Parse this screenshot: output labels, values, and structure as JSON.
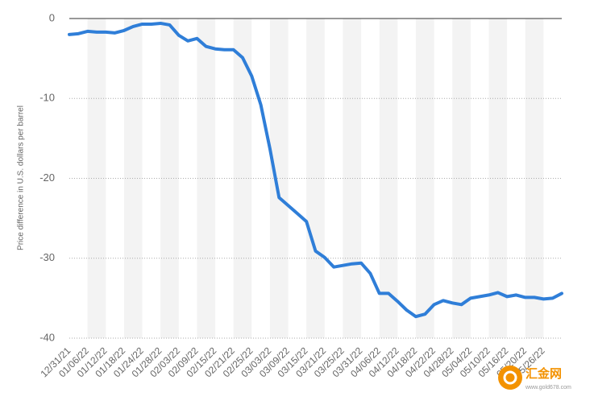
{
  "chart_data": {
    "type": "line",
    "y_axis_title": "Price difference in U.S. dollars per barrel",
    "categories": [
      "12/31/21",
      null,
      "01/06/22",
      null,
      "01/12/22",
      null,
      "01/18/22",
      null,
      "01/24/22",
      null,
      "01/28/22",
      null,
      "02/03/22",
      null,
      "02/09/22",
      null,
      "02/15/22",
      null,
      "02/21/22",
      null,
      "02/25/22",
      null,
      "03/03/22",
      null,
      "03/09/22",
      null,
      "03/15/22",
      null,
      "03/21/22",
      null,
      "03/25/22",
      null,
      "03/31/22",
      null,
      "04/06/22",
      null,
      "04/12/22",
      null,
      "04/18/22",
      null,
      "04/22/22",
      null,
      "04/28/22",
      null,
      "05/04/22",
      null,
      "05/10/22",
      null,
      "05/16/22",
      null,
      "05/20/22",
      null,
      "05/26/22",
      null,
      null
    ],
    "values": [
      -2.0,
      -1.9,
      -1.6,
      -1.7,
      -1.7,
      -1.8,
      -1.5,
      -1.0,
      -0.7,
      -0.7,
      -0.6,
      -0.8,
      -2.1,
      -2.8,
      -2.5,
      -3.5,
      -3.8,
      -3.9,
      -3.9,
      -4.9,
      -7.2,
      -10.8,
      -16.3,
      -22.4,
      -23.4,
      -24.4,
      -25.4,
      -29.1,
      -29.9,
      -31.1,
      -30.9,
      -30.7,
      -30.6,
      -31.9,
      -34.4,
      -34.4,
      -35.4,
      -36.5,
      -37.3,
      -37.0,
      -35.8,
      -35.3,
      -35.6,
      -35.8,
      -35.0,
      -34.8,
      -34.6,
      -34.3,
      -34.8,
      -34.6,
      -34.9,
      -34.9,
      -35.1,
      -35.0,
      -34.4
    ],
    "color": "#2f7ed8",
    "ylim": [
      -40,
      0
    ],
    "yticks": [
      0,
      -10,
      -20,
      -30,
      -40
    ],
    "grid": true,
    "watermark": {
      "text": "汇金网",
      "url": "www.gold678.com"
    }
  }
}
